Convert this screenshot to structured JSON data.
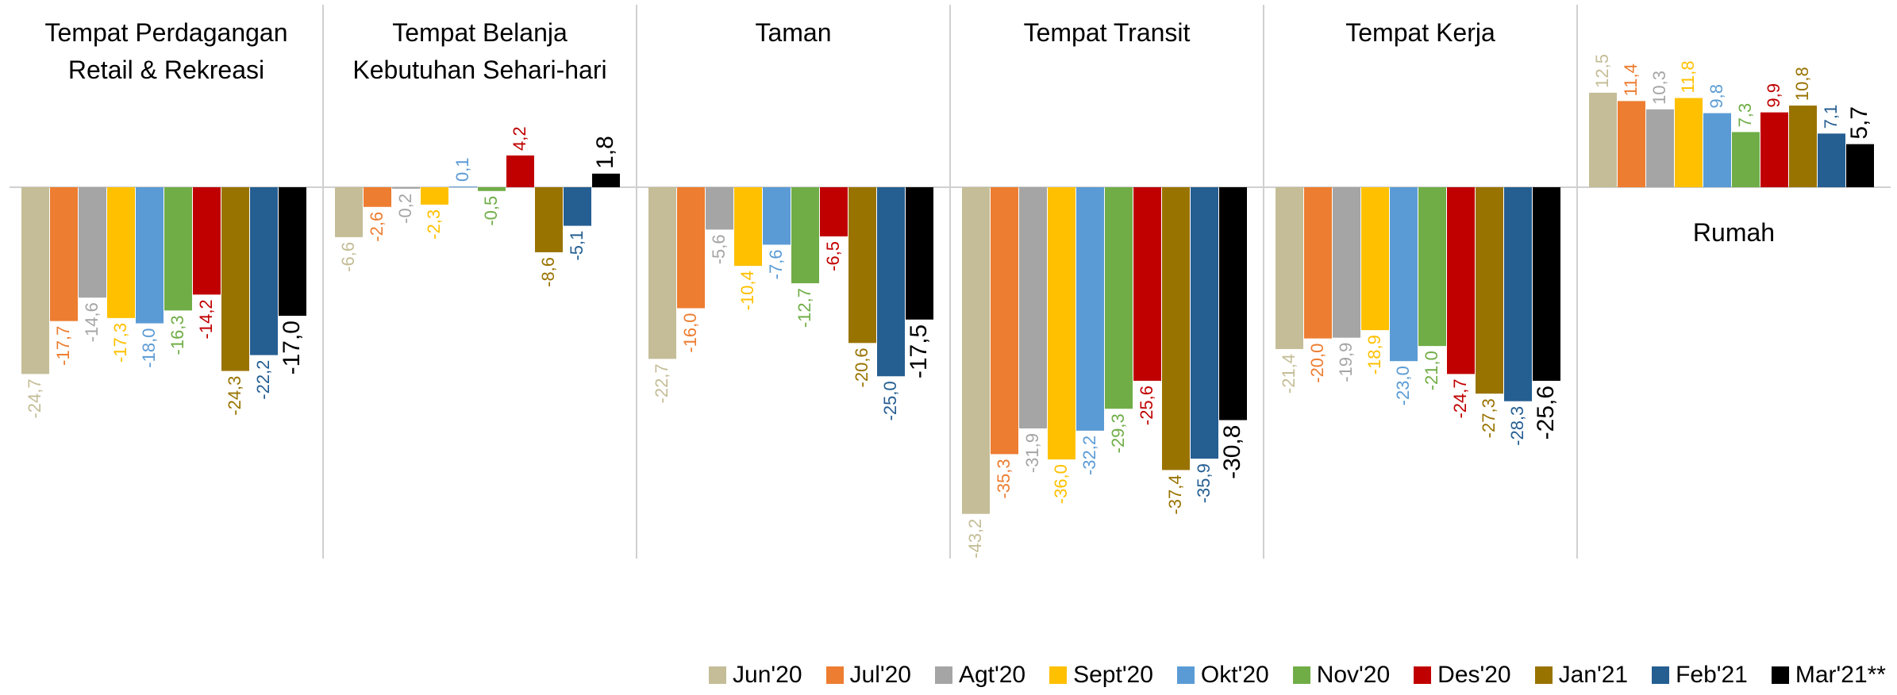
{
  "chart_data": {
    "type": "bar",
    "categories": [
      "Tempat Perdagangan Retail & Rekreasi",
      "Tempat Belanja Kebutuhan Sehari-hari",
      "Taman",
      "Tempat Transit",
      "Tempat Kerja",
      "Rumah"
    ],
    "series": [
      {
        "name": "Jun'20",
        "color": "#c4bd97",
        "values": [
          -24.7,
          -6.6,
          -22.7,
          -43.2,
          -21.4,
          12.5
        ],
        "value_labels": [
          "-24,7",
          "-6,6",
          "-22,7",
          "-43,2",
          "-21,4",
          "12,5"
        ]
      },
      {
        "name": "Jul'20",
        "color": "#ed7d31",
        "values": [
          -17.7,
          -2.6,
          -16.0,
          -35.3,
          -20.0,
          11.4
        ],
        "value_labels": [
          "-17,7",
          "-2,6",
          "-16,0",
          "-35,3",
          "-20,0",
          "11,4"
        ]
      },
      {
        "name": "Agt'20",
        "color": "#a5a5a5",
        "values": [
          -14.6,
          -0.2,
          -5.6,
          -31.9,
          -19.9,
          10.3
        ],
        "value_labels": [
          "-14,6",
          "-0,2",
          "-5,6",
          "-31,9",
          "-19,9",
          "10,3"
        ]
      },
      {
        "name": "Sept'20",
        "color": "#ffc000",
        "values": [
          -17.3,
          -2.3,
          -10.4,
          -36.0,
          -18.9,
          11.8
        ],
        "value_labels": [
          "-17,3",
          "-2,3",
          "-10,4",
          "-36,0",
          "-18,9",
          "11,8"
        ]
      },
      {
        "name": "Okt'20",
        "color": "#5b9bd5",
        "values": [
          -18.0,
          0.1,
          -7.6,
          -32.2,
          -23.0,
          9.8
        ],
        "value_labels": [
          "-18,0",
          "0,1",
          "-7,6",
          "-32,2",
          "-23,0",
          "9,8"
        ]
      },
      {
        "name": "Nov'20",
        "color": "#70ad47",
        "values": [
          -16.3,
          -0.5,
          -12.7,
          -29.3,
          -21.0,
          7.3
        ],
        "value_labels": [
          "-16,3",
          "-0,5",
          "-12,7",
          "-29,3",
          "-21,0",
          "7,3"
        ]
      },
      {
        "name": "Des'20",
        "color": "#c00000",
        "values": [
          -14.2,
          4.2,
          -6.5,
          -25.6,
          -24.7,
          9.9
        ],
        "value_labels": [
          "-14,2",
          "4,2",
          "-6,5",
          "-25,6",
          "-24,7",
          "9,9"
        ]
      },
      {
        "name": "Jan'21",
        "color": "#997300",
        "values": [
          -24.3,
          -8.6,
          -20.6,
          -37.4,
          -27.3,
          10.8
        ],
        "value_labels": [
          "-24,3",
          "-8,6",
          "-20,6",
          "-37,4",
          "-27,3",
          "10,8"
        ]
      },
      {
        "name": "Feb'21",
        "color": "#255e91",
        "values": [
          -22.2,
          -5.1,
          -25.0,
          -35.9,
          -28.3,
          7.1
        ],
        "value_labels": [
          "-22,2",
          "-5,1",
          "-25,0",
          "-35,9",
          "-28,3",
          "7,1"
        ]
      },
      {
        "name": "Mar'21**",
        "color": "#000000",
        "values": [
          -17.0,
          1.8,
          -17.5,
          -30.8,
          -25.6,
          5.7
        ],
        "value_labels": [
          "-17,0",
          "1,8",
          "-17,5",
          "-30,8",
          "-25,6",
          "5,7"
        ]
      }
    ]
  }
}
